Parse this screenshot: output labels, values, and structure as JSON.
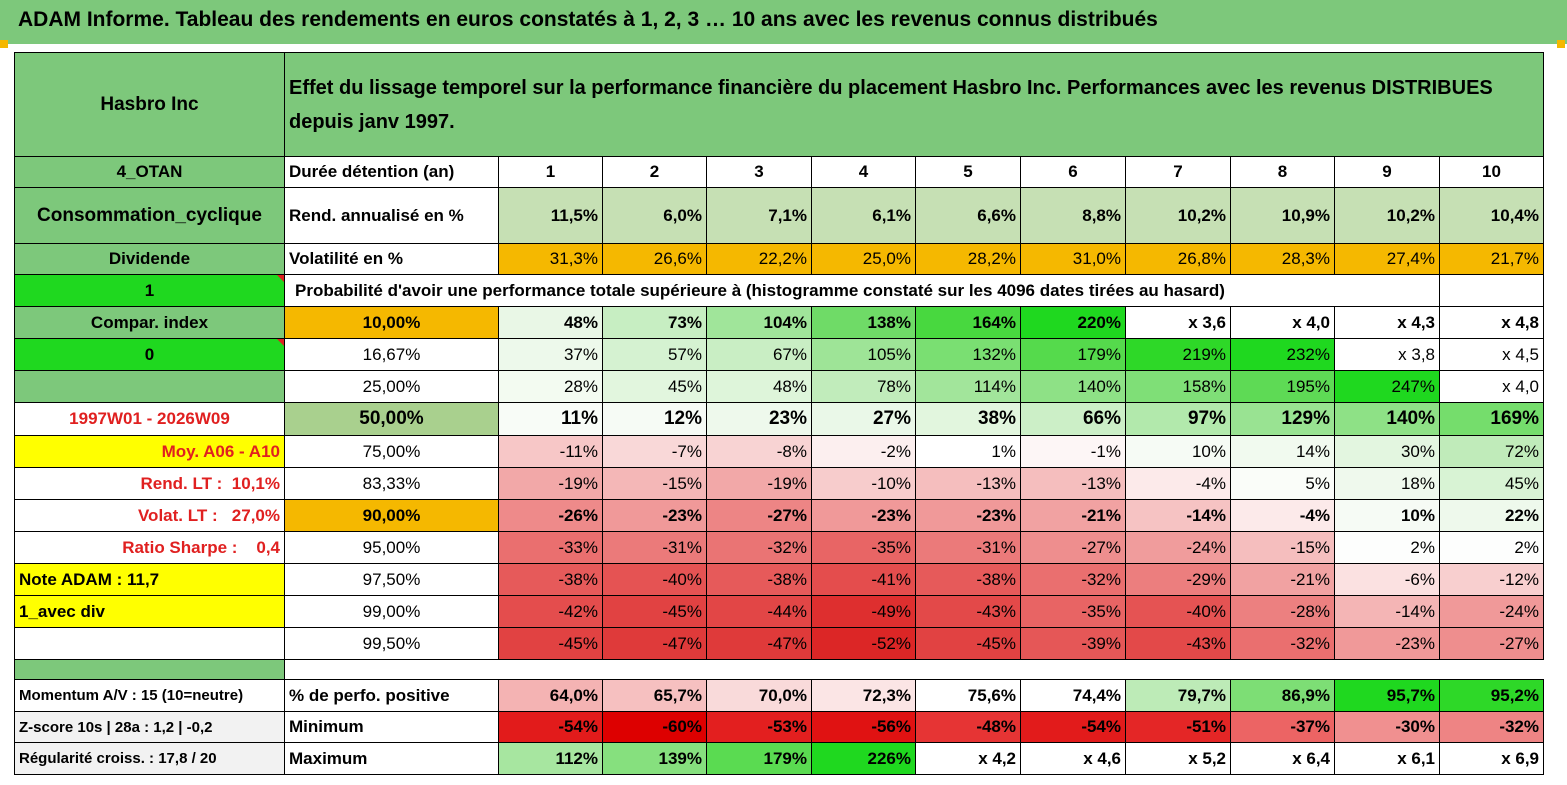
{
  "title": "ADAM Informe. Tableau des rendements en euros constatés à 1, 2, 3 … 10 ans avec les revenus connus distribués",
  "header": {
    "company": "Hasbro Inc",
    "description": "Effet du lissage temporel sur la performance financière du placement Hasbro Inc. Performances avec les revenus DISTRIBUES depuis janv 1997."
  },
  "left_labels": {
    "alliance": "4_OTAN",
    "sector": "Consommation_cyclique",
    "dividend": "Dividende",
    "one": "1",
    "compar_index": "Compar. index",
    "zero": "0",
    "period": "1997W01 - 2026W09",
    "moy": "Moy. A06 - A10",
    "rend_lt_label": "Rend. LT :",
    "rend_lt_value": "10,1%",
    "volat_lt_label": "Volat. LT :",
    "volat_lt_value": "27,0%",
    "sharpe_label": "Ratio Sharpe :",
    "sharpe_value": "0,4",
    "note_adam": "Note ADAM : 11,7",
    "avec_div": "1_avec div"
  },
  "years": {
    "label": "Durée détention (an)",
    "values": [
      "1",
      "2",
      "3",
      "4",
      "5",
      "6",
      "7",
      "8",
      "9",
      "10"
    ]
  },
  "rend": {
    "label": "Rend. annualisé en %",
    "values": [
      "11,5%",
      "6,0%",
      "7,1%",
      "6,1%",
      "6,6%",
      "8,8%",
      "10,2%",
      "10,9%",
      "10,2%",
      "10,4%"
    ]
  },
  "vol": {
    "label": "Volatilité en %",
    "values": [
      "31,3%",
      "26,6%",
      "22,2%",
      "25,0%",
      "28,2%",
      "31,0%",
      "26,8%",
      "28,3%",
      "27,4%",
      "21,7%"
    ]
  },
  "prob_header": "Probabilité d'avoir une performance totale supérieure à (histogramme constaté sur les 4096 dates tirées au hasard)",
  "prob_rows": [
    {
      "level": "10,00%",
      "values": [
        "48%",
        "73%",
        "104%",
        "138%",
        "164%",
        "220%",
        "x 3,6",
        "x 4,0",
        "x 4,3",
        "x 4,8"
      ]
    },
    {
      "level": "16,67%",
      "values": [
        "37%",
        "57%",
        "67%",
        "105%",
        "132%",
        "179%",
        "219%",
        "232%",
        "x 3,8",
        "x 4,5"
      ]
    },
    {
      "level": "25,00%",
      "values": [
        "28%",
        "45%",
        "48%",
        "78%",
        "114%",
        "140%",
        "158%",
        "195%",
        "247%",
        "x 4,0"
      ]
    },
    {
      "level": "50,00%",
      "values": [
        "11%",
        "12%",
        "23%",
        "27%",
        "38%",
        "66%",
        "97%",
        "129%",
        "140%",
        "169%"
      ]
    },
    {
      "level": "75,00%",
      "values": [
        "-11%",
        "-7%",
        "-8%",
        "-2%",
        "1%",
        "-1%",
        "10%",
        "14%",
        "30%",
        "72%"
      ]
    },
    {
      "level": "83,33%",
      "values": [
        "-19%",
        "-15%",
        "-19%",
        "-10%",
        "-13%",
        "-13%",
        "-4%",
        "5%",
        "18%",
        "45%"
      ]
    },
    {
      "level": "90,00%",
      "values": [
        "-26%",
        "-23%",
        "-27%",
        "-23%",
        "-23%",
        "-21%",
        "-14%",
        "-4%",
        "10%",
        "22%"
      ]
    },
    {
      "level": "95,00%",
      "values": [
        "-33%",
        "-31%",
        "-32%",
        "-35%",
        "-31%",
        "-27%",
        "-24%",
        "-15%",
        "2%",
        "2%"
      ]
    },
    {
      "level": "97,50%",
      "values": [
        "-38%",
        "-40%",
        "-38%",
        "-41%",
        "-38%",
        "-32%",
        "-29%",
        "-21%",
        "-6%",
        "-12%"
      ]
    },
    {
      "level": "99,00%",
      "values": [
        "-42%",
        "-45%",
        "-44%",
        "-49%",
        "-43%",
        "-35%",
        "-40%",
        "-28%",
        "-14%",
        "-24%"
      ]
    },
    {
      "level": "99,50%",
      "values": [
        "-45%",
        "-47%",
        "-47%",
        "-52%",
        "-45%",
        "-39%",
        "-43%",
        "-32%",
        "-23%",
        "-27%"
      ]
    }
  ],
  "bottom": {
    "momentum": "Momentum A/V : 15 (10=neutre)",
    "zscore": "Z-score 10s | 28a : 1,2 | -0,2",
    "regularite": "Régularité croiss. : 17,8 / 20",
    "pos_label": "% de perfo. positive",
    "pos_values": [
      "64,0%",
      "65,7%",
      "70,0%",
      "72,3%",
      "75,6%",
      "74,4%",
      "79,7%",
      "86,9%",
      "95,7%",
      "95,2%"
    ],
    "min_label": "Minimum",
    "min_values": [
      "-54%",
      "-60%",
      "-53%",
      "-56%",
      "-48%",
      "-54%",
      "-51%",
      "-37%",
      "-30%",
      "-32%"
    ],
    "max_label": "Maximum",
    "max_values": [
      "112%",
      "139%",
      "179%",
      "226%",
      "x 4,2",
      "x 4,6",
      "x 5,2",
      "x 6,4",
      "x 6,1",
      "x 6,9"
    ]
  },
  "colors": {
    "header_green": "#7DC87B",
    "bright_green": "#1FD81F",
    "orange": "#F5B800",
    "yellow": "#FFFF00",
    "label_green_light": "#B5D9A8",
    "red_text": "#E02020"
  }
}
